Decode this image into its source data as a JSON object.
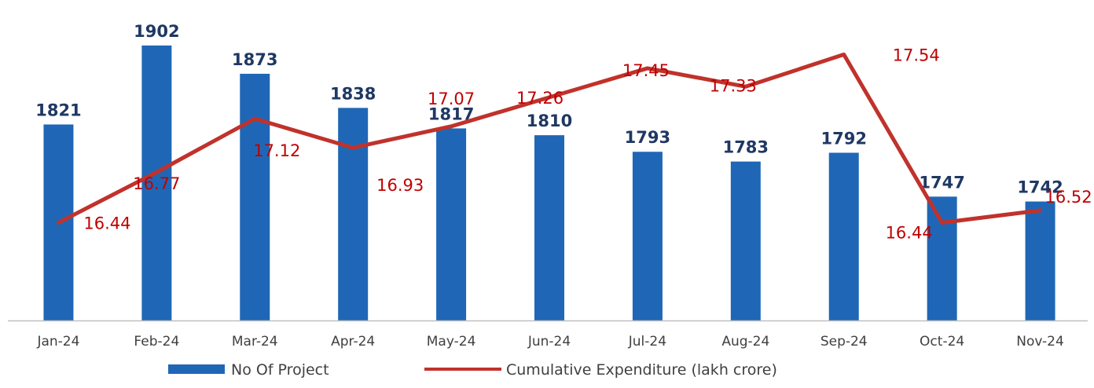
{
  "chart_data": {
    "type": "bar",
    "categories": [
      "Jan-24",
      "Feb-24",
      "Mar-24",
      "Apr-24",
      "May-24",
      "Jun-24",
      "Jul-24",
      "Aug-24",
      "Sep-24",
      "Oct-24",
      "Nov-24"
    ],
    "series": [
      {
        "name": "No Of Project",
        "type": "bar",
        "axis": "primary",
        "color": "#1f67b6",
        "values": [
          1821,
          1902,
          1873,
          1838,
          1817,
          1810,
          1793,
          1783,
          1792,
          1747,
          1742
        ]
      },
      {
        "name": "Cumulative Expenditure (lakh crore)",
        "type": "line",
        "axis": "secondary",
        "color": "#c0322b",
        "values": [
          16.44,
          16.77,
          17.12,
          16.93,
          17.07,
          17.26,
          17.45,
          17.33,
          17.54,
          16.44,
          16.52
        ]
      }
    ],
    "title": "",
    "xlabel": "",
    "ylabel": "",
    "y_axis_visible": false,
    "ylim": [
      1620,
      1910
    ],
    "y2lim": [
      15.8,
      17.65
    ],
    "grid": false,
    "legend": "bottom",
    "data_labels": true
  }
}
